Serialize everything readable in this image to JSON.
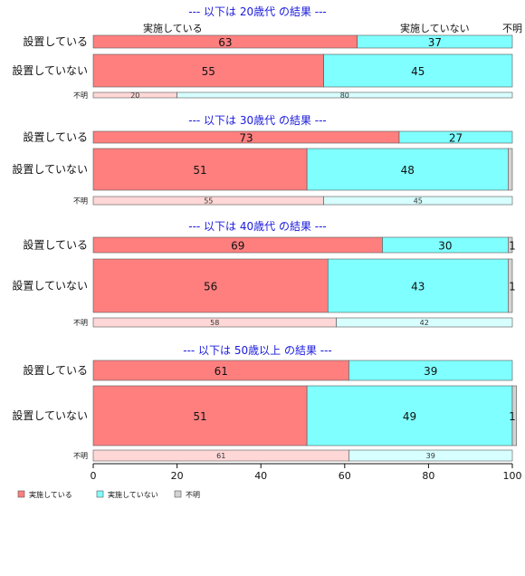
{
  "chart_data": {
    "type": "bar",
    "orientation": "horizontal",
    "stacked": true,
    "percent": true,
    "column_labels": [
      "実施している",
      "実施していない",
      "不明"
    ],
    "colors": {
      "実施している": "#ff7f7f",
      "実施していない": "#7fffff",
      "不明": "#d3d3d3",
      "実施している_light": "#ffd7d7",
      "実施していない_light": "#d7ffff",
      "edge": "#555555"
    },
    "xlim": [
      0,
      100
    ],
    "xticks": [
      0,
      20,
      40,
      60,
      80,
      100
    ],
    "groups": [
      {
        "title": "--- 以下は 20歳代 の結果 ---",
        "rows": [
          {
            "label": "設置している",
            "values": [
              63,
              37,
              0
            ],
            "labels": [
              "63",
              "37",
              ""
            ]
          },
          {
            "label": "設置していない",
            "values": [
              55,
              45,
              0
            ],
            "labels": [
              "55",
              "45",
              ""
            ]
          },
          {
            "label": "不明",
            "values": [
              20,
              80,
              0
            ],
            "labels": [
              "20",
              "80",
              ""
            ]
          }
        ]
      },
      {
        "title": "--- 以下は 30歳代 の結果 ---",
        "rows": [
          {
            "label": "設置している",
            "values": [
              73,
              27,
              0
            ],
            "labels": [
              "73",
              "27",
              ""
            ]
          },
          {
            "label": "設置していない",
            "values": [
              51,
              48,
              1
            ],
            "labels": [
              "51",
              "48",
              ""
            ]
          },
          {
            "label": "不明",
            "values": [
              55,
              45,
              0
            ],
            "labels": [
              "55",
              "45",
              ""
            ]
          }
        ]
      },
      {
        "title": "--- 以下は 40歳代 の結果 ---",
        "rows": [
          {
            "label": "設置している",
            "values": [
              69,
              30,
              1
            ],
            "labels": [
              "69",
              "30",
              "1"
            ]
          },
          {
            "label": "設置していない",
            "values": [
              56,
              43,
              1
            ],
            "labels": [
              "56",
              "43",
              "1"
            ]
          },
          {
            "label": "不明",
            "values": [
              58,
              42,
              0
            ],
            "labels": [
              "58",
              "42",
              ""
            ]
          }
        ]
      },
      {
        "title": "--- 以下は 50歳以上 の結果 ---",
        "rows": [
          {
            "label": "設置している",
            "values": [
              61,
              39,
              0
            ],
            "labels": [
              "61",
              "39",
              ""
            ]
          },
          {
            "label": "設置していない",
            "values": [
              51,
              49,
              1
            ],
            "labels": [
              "51",
              "49",
              "1"
            ]
          },
          {
            "label": "不明",
            "values": [
              61,
              39,
              0
            ],
            "labels": [
              "61",
              "39",
              ""
            ]
          }
        ]
      }
    ],
    "legend": {
      "entries": [
        "実施している",
        "実施していない",
        "不明"
      ],
      "position": "bottom-left"
    },
    "grid": false
  }
}
